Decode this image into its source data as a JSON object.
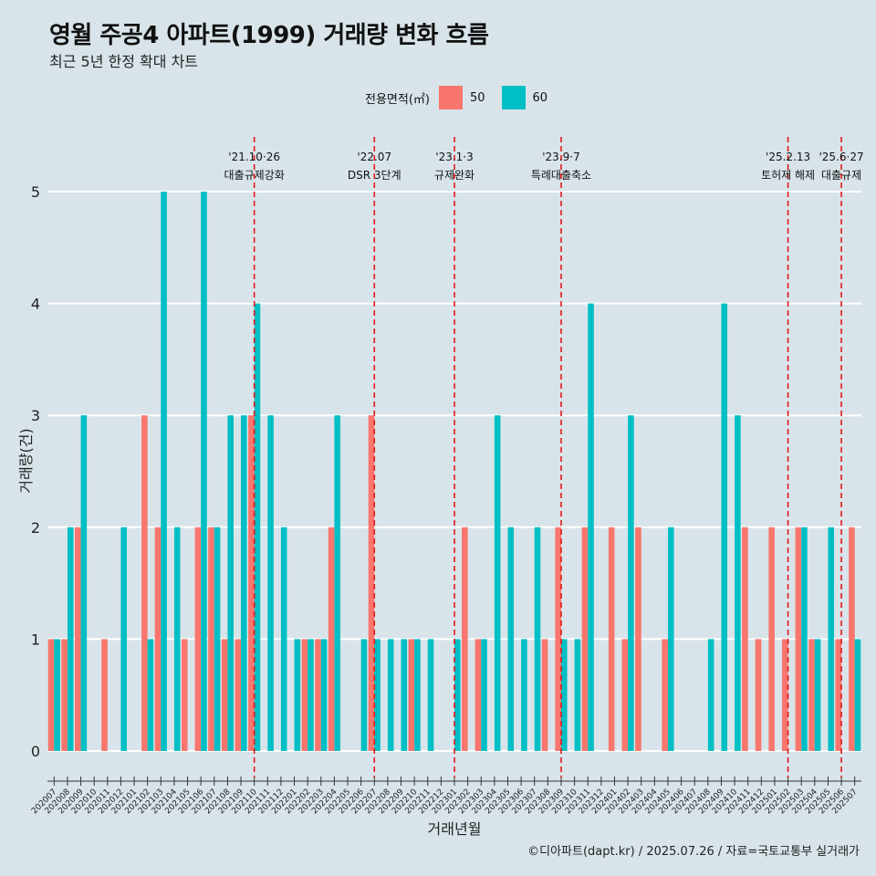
{
  "title": "영월 주공4 아파트(1999) 거래량 변화 흐름",
  "subtitle": "최근 5년 한정 확대 차트",
  "legend": {
    "title": "전용면적(㎡)",
    "items": [
      {
        "label": "50",
        "color": "#f8766d"
      },
      {
        "label": "60",
        "color": "#00bfc4"
      }
    ]
  },
  "caption": "©디아파트(dapt.kr) / 2025.07.26 / 자료=국토교통부 실거래가",
  "chart_data": {
    "type": "bar",
    "position": "dodge",
    "xlabel": "거래년월",
    "ylabel": "거래량(건)",
    "ylim": [
      0,
      5
    ],
    "yticks": [
      0,
      1,
      2,
      3,
      4,
      5
    ],
    "categories": [
      "202007",
      "202008",
      "202009",
      "202010",
      "202011",
      "202012",
      "202101",
      "202102",
      "202103",
      "202104",
      "202105",
      "202106",
      "202107",
      "202108",
      "202109",
      "202110",
      "202111",
      "202112",
      "202201",
      "202202",
      "202203",
      "202204",
      "202205",
      "202206",
      "202207",
      "202208",
      "202209",
      "202210",
      "202211",
      "202212",
      "202301",
      "202302",
      "202303",
      "202304",
      "202305",
      "202306",
      "202307",
      "202308",
      "202309",
      "202310",
      "202311",
      "202312",
      "202401",
      "202402",
      "202403",
      "202404",
      "202405",
      "202406",
      "202407",
      "202408",
      "202409",
      "202410",
      "202411",
      "202412",
      "202501",
      "202502",
      "202503",
      "202504",
      "202505",
      "202506",
      "202507"
    ],
    "series": [
      {
        "name": "50",
        "color": "#f8766d",
        "values": [
          1,
          1,
          2,
          0,
          1,
          0,
          0,
          3,
          2,
          0,
          1,
          2,
          2,
          1,
          1,
          3,
          0,
          0,
          0,
          1,
          1,
          2,
          0,
          0,
          3,
          0,
          0,
          1,
          0,
          0,
          0,
          2,
          1,
          0,
          0,
          0,
          0,
          1,
          2,
          0,
          2,
          0,
          2,
          1,
          2,
          0,
          1,
          0,
          0,
          0,
          0,
          0,
          2,
          1,
          2,
          1,
          2,
          1,
          0,
          1,
          2
        ]
      },
      {
        "name": "60",
        "color": "#00bfc4",
        "values": [
          1,
          2,
          3,
          0,
          0,
          2,
          0,
          1,
          5,
          2,
          0,
          5,
          2,
          3,
          3,
          4,
          3,
          2,
          1,
          1,
          1,
          3,
          0,
          1,
          1,
          1,
          1,
          1,
          1,
          0,
          1,
          0,
          1,
          3,
          2,
          1,
          2,
          0,
          1,
          1,
          4,
          0,
          0,
          3,
          0,
          0,
          2,
          0,
          0,
          1,
          4,
          3,
          0,
          0,
          0,
          0,
          2,
          1,
          2,
          0,
          1
        ]
      }
    ],
    "events": [
      {
        "category": "202110",
        "date": "'21.10·26",
        "label": "대출규제강화"
      },
      {
        "category": "202207",
        "date": "'22.07",
        "label": "DSR 3단계"
      },
      {
        "category": "202301",
        "date": "'23.1·3",
        "label": "규제완화"
      },
      {
        "category": "202309",
        "date": "'23.9·7",
        "label": "특례대출축소"
      },
      {
        "category": "202502",
        "date": "'25.2.13",
        "label": "토허제 해제"
      },
      {
        "category": "202506",
        "date": "'25.6·27",
        "label": "대출규제"
      }
    ]
  }
}
